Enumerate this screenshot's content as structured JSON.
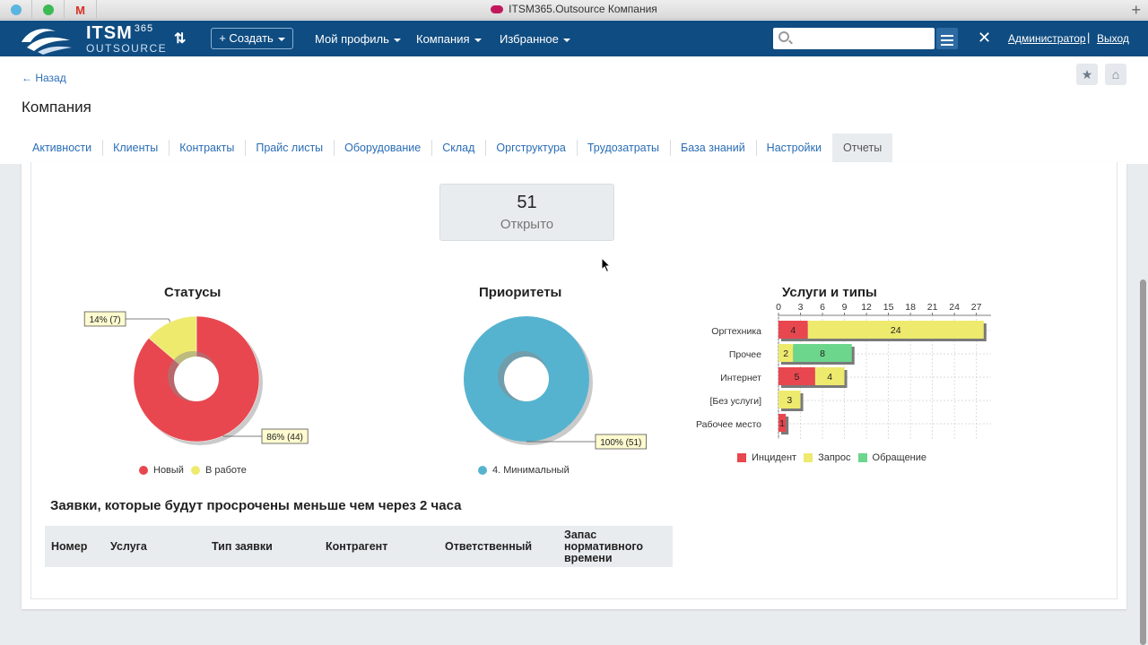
{
  "browser": {
    "window_title": "ITSM365.Outsource Компания",
    "new_tab": "+"
  },
  "header": {
    "brand_main": "ITSM",
    "brand_sup": "365",
    "brand_sub": "OUTSOURCE",
    "create_label": "+ Создать",
    "menu": [
      {
        "label": "Мой профиль"
      },
      {
        "label": "Компания"
      },
      {
        "label": "Избранное"
      }
    ],
    "search_placeholder": "",
    "user_label": "Администратор",
    "separator": "|",
    "logout_label": "Выход"
  },
  "page": {
    "back_label": "← Назад",
    "title": "Компания",
    "tabs": [
      {
        "label": "Активности"
      },
      {
        "label": "Клиенты"
      },
      {
        "label": "Контракты"
      },
      {
        "label": "Прайс листы"
      },
      {
        "label": "Оборудование"
      },
      {
        "label": "Склад"
      },
      {
        "label": "Оргструктура"
      },
      {
        "label": "Трудозатраты"
      },
      {
        "label": "База знаний"
      },
      {
        "label": "Настройки"
      },
      {
        "label": "Отчеты",
        "active": true
      }
    ]
  },
  "kpi": {
    "value": "51",
    "label": "Открыто"
  },
  "chart_data": [
    {
      "type": "pie",
      "title": "Статусы",
      "categories": [
        "Новый",
        "В работе"
      ],
      "values": [
        44,
        7
      ],
      "data_labels": [
        "86% (44)",
        "14% (7)"
      ],
      "colors": [
        "#e8474f",
        "#eeea6e"
      ],
      "legend": "bottom"
    },
    {
      "type": "pie",
      "title": "Приоритеты",
      "categories": [
        "4. Минимальный"
      ],
      "values": [
        51
      ],
      "data_labels": [
        "100% (51)"
      ],
      "colors": [
        "#56b3cf"
      ],
      "legend": "bottom"
    },
    {
      "type": "bar",
      "orientation": "horizontal",
      "stacked": true,
      "title": "Услуги и типы",
      "categories": [
        "Оргтехника",
        "Прочее",
        "Интернет",
        "[Без услуги]",
        "Рабочее место"
      ],
      "series": [
        {
          "name": "Инцидент",
          "color": "#e8474f",
          "values": [
            4,
            0,
            5,
            0,
            1
          ]
        },
        {
          "name": "Запрос",
          "color": "#eeea6e",
          "values": [
            24,
            2,
            4,
            3,
            0
          ]
        },
        {
          "name": "Обращение",
          "color": "#6cd68c",
          "values": [
            0,
            8,
            0,
            0,
            0
          ]
        }
      ],
      "xticks": [
        0,
        3,
        6,
        9,
        12,
        15,
        18,
        21,
        24,
        27
      ],
      "xlim": [
        0,
        29
      ],
      "grid": true,
      "legend": "bottom"
    }
  ],
  "overdue": {
    "title": "Заявки, которые будут просрочены меньше чем через 2 часа",
    "columns": [
      "Номер",
      "Услуга",
      "Тип заявки",
      "Контрагент",
      "Ответственный",
      "Запас нормативного времени"
    ]
  }
}
